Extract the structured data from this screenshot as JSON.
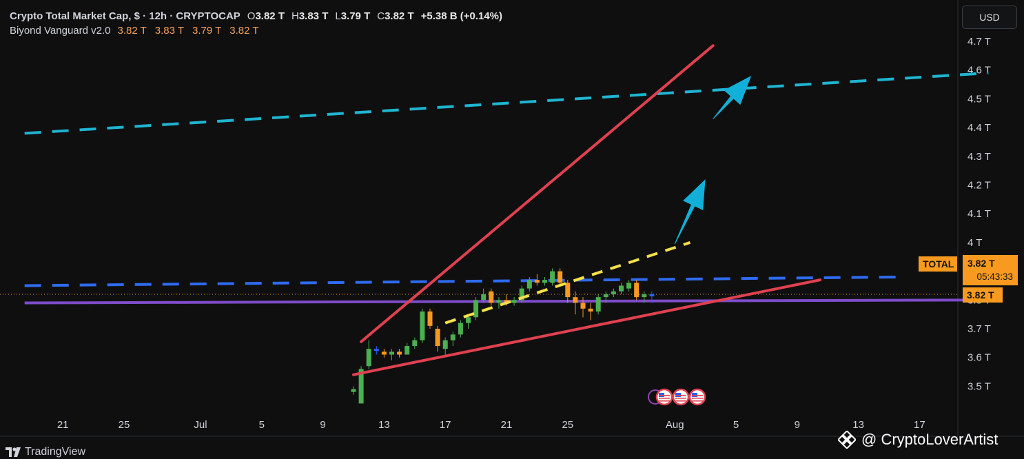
{
  "legend": {
    "symbol": "Crypto Total Market Cap, $ · 12h · CRYPTOCAP",
    "open_label": "O",
    "open": "3.82 T",
    "high_label": "H",
    "high": "3.83 T",
    "low_label": "L",
    "low": "3.79 T",
    "close_label": "C",
    "close": "3.82 T",
    "change": "+5.38 B (+0.14%)",
    "indicator_name": "Biyond Vanguard v2.0",
    "indicator_values": [
      "3.82 T",
      "3.83 T",
      "3.79 T",
      "3.82 T"
    ]
  },
  "currency_button": "USD",
  "price_tags": {
    "series_label": "TOTAL",
    "last_price": "3.82 T",
    "countdown": "05:43:33",
    "indicator_price": "3.82 T"
  },
  "branding": {
    "platform": "TradingView",
    "watermark": "@ CryptoLoverArtist"
  },
  "colors": {
    "background": "#0f0f10",
    "up_candle": "#4caf50",
    "down_candle": "#f79a1f",
    "doji_candle": "#2962ff",
    "wedge": "#e0414f",
    "cyan_level": "#1fb5d1",
    "blue_level": "#2f6bf0",
    "purple_level": "#7e4cc9",
    "yellow_trend": "#f5e04a",
    "arrow": "#12b0d8"
  },
  "chart_data": {
    "type": "candlestick",
    "title": "Crypto Total Market Cap, $ · 12h · CRYPTOCAP",
    "y_unit": "T",
    "ylim": [
      3.45,
      4.72
    ],
    "y_ticks": [
      {
        "v": 4.7,
        "l": "4.7 T"
      },
      {
        "v": 4.6,
        "l": "4.6 T"
      },
      {
        "v": 4.5,
        "l": "4.5 T"
      },
      {
        "v": 4.4,
        "l": "4.4 T"
      },
      {
        "v": 4.3,
        "l": "4.3 T"
      },
      {
        "v": 4.2,
        "l": "4.2 T"
      },
      {
        "v": 4.1,
        "l": "4.1 T"
      },
      {
        "v": 4.0,
        "l": "4 T"
      },
      {
        "v": 3.8,
        "l": "3.8 T"
      },
      {
        "v": 3.7,
        "l": "3.7 T"
      },
      {
        "v": 3.6,
        "l": "3.6 T"
      },
      {
        "v": 3.5,
        "l": "3.5 T"
      }
    ],
    "x_ticks": [
      {
        "day": -9,
        "l": "21"
      },
      {
        "day": -5,
        "l": "25"
      },
      {
        "day": 0,
        "l": "Jul"
      },
      {
        "day": 4,
        "l": "5"
      },
      {
        "day": 8,
        "l": "9"
      },
      {
        "day": 12,
        "l": "13"
      },
      {
        "day": 16,
        "l": "17"
      },
      {
        "day": 20,
        "l": "21"
      },
      {
        "day": 24,
        "l": "25"
      },
      {
        "day": 31,
        "l": "Aug"
      },
      {
        "day": 35,
        "l": "5"
      },
      {
        "day": 39,
        "l": "9"
      },
      {
        "day": 43,
        "l": "13"
      },
      {
        "day": 47,
        "l": "17"
      }
    ],
    "candles": [
      {
        "d": "Jul 10 00:00",
        "o": 3.48,
        "h": 3.5,
        "l": 3.47,
        "c": 3.49
      },
      {
        "d": "Jul 10 12:00",
        "o": 3.44,
        "h": 3.57,
        "l": 3.44,
        "c": 3.56
      },
      {
        "d": "Jul 11 00:00",
        "o": 3.57,
        "h": 3.66,
        "l": 3.56,
        "c": 3.63
      },
      {
        "d": "Jul 11 12:00",
        "o": 3.63,
        "h": 3.64,
        "l": 3.61,
        "c": 3.63
      },
      {
        "d": "Jul 12 00:00",
        "o": 3.62,
        "h": 3.63,
        "l": 3.6,
        "c": 3.61
      },
      {
        "d": "Jul 12 12:00",
        "o": 3.61,
        "h": 3.63,
        "l": 3.59,
        "c": 3.62
      },
      {
        "d": "Jul 13 00:00",
        "o": 3.62,
        "h": 3.63,
        "l": 3.6,
        "c": 3.61
      },
      {
        "d": "Jul 13 12:00",
        "o": 3.61,
        "h": 3.65,
        "l": 3.61,
        "c": 3.64
      },
      {
        "d": "Jul 14 00:00",
        "o": 3.64,
        "h": 3.67,
        "l": 3.63,
        "c": 3.66
      },
      {
        "d": "Jul 14 12:00",
        "o": 3.66,
        "h": 3.77,
        "l": 3.65,
        "c": 3.76
      },
      {
        "d": "Jul 15 00:00",
        "o": 3.76,
        "h": 3.77,
        "l": 3.7,
        "c": 3.71
      },
      {
        "d": "Jul 15 12:00",
        "o": 3.7,
        "h": 3.71,
        "l": 3.62,
        "c": 3.64
      },
      {
        "d": "Jul 16 00:00",
        "o": 3.63,
        "h": 3.67,
        "l": 3.61,
        "c": 3.66
      },
      {
        "d": "Jul 16 12:00",
        "o": 3.66,
        "h": 3.69,
        "l": 3.64,
        "c": 3.68
      },
      {
        "d": "Jul 17 00:00",
        "o": 3.68,
        "h": 3.73,
        "l": 3.67,
        "c": 3.72
      },
      {
        "d": "Jul 17 12:00",
        "o": 3.72,
        "h": 3.75,
        "l": 3.7,
        "c": 3.74
      },
      {
        "d": "Jul 18 00:00",
        "o": 3.74,
        "h": 3.81,
        "l": 3.73,
        "c": 3.8
      },
      {
        "d": "Jul 18 12:00",
        "o": 3.8,
        "h": 3.84,
        "l": 3.79,
        "c": 3.82
      },
      {
        "d": "Jul 19 00:00",
        "o": 3.83,
        "h": 3.84,
        "l": 3.78,
        "c": 3.79
      },
      {
        "d": "Jul 19 12:00",
        "o": 3.79,
        "h": 3.81,
        "l": 3.77,
        "c": 3.8
      },
      {
        "d": "Jul 20 00:00",
        "o": 3.8,
        "h": 3.82,
        "l": 3.78,
        "c": 3.79
      },
      {
        "d": "Jul 20 12:00",
        "o": 3.79,
        "h": 3.81,
        "l": 3.78,
        "c": 3.8
      },
      {
        "d": "Jul 21 00:00",
        "o": 3.8,
        "h": 3.85,
        "l": 3.79,
        "c": 3.84
      },
      {
        "d": "Jul 21 12:00",
        "o": 3.84,
        "h": 3.88,
        "l": 3.83,
        "c": 3.87
      },
      {
        "d": "Jul 22 00:00",
        "o": 3.87,
        "h": 3.89,
        "l": 3.85,
        "c": 3.86
      },
      {
        "d": "Jul 22 12:00",
        "o": 3.86,
        "h": 3.88,
        "l": 3.85,
        "c": 3.87
      },
      {
        "d": "Jul 23 00:00",
        "o": 3.86,
        "h": 3.91,
        "l": 3.85,
        "c": 3.9
      },
      {
        "d": "Jul 23 12:00",
        "o": 3.9,
        "h": 3.91,
        "l": 3.85,
        "c": 3.86
      },
      {
        "d": "Jul 24 00:00",
        "o": 3.86,
        "h": 3.87,
        "l": 3.79,
        "c": 3.81
      },
      {
        "d": "Jul 24 12:00",
        "o": 3.81,
        "h": 3.83,
        "l": 3.75,
        "c": 3.79
      },
      {
        "d": "Jul 25 00:00",
        "o": 3.79,
        "h": 3.81,
        "l": 3.74,
        "c": 3.77
      },
      {
        "d": "Jul 25 12:00",
        "o": 3.77,
        "h": 3.79,
        "l": 3.73,
        "c": 3.76
      },
      {
        "d": "Jul 26 00:00",
        "o": 3.76,
        "h": 3.82,
        "l": 3.75,
        "c": 3.81
      },
      {
        "d": "Jul 26 12:00",
        "o": 3.81,
        "h": 3.83,
        "l": 3.79,
        "c": 3.82
      },
      {
        "d": "Jul 27 00:00",
        "o": 3.82,
        "h": 3.84,
        "l": 3.81,
        "c": 3.83
      },
      {
        "d": "Jul 27 12:00",
        "o": 3.83,
        "h": 3.86,
        "l": 3.82,
        "c": 3.85
      },
      {
        "d": "Jul 28 00:00",
        "o": 3.84,
        "h": 3.87,
        "l": 3.83,
        "c": 3.86
      },
      {
        "d": "Jul 28 12:00",
        "o": 3.86,
        "h": 3.87,
        "l": 3.8,
        "c": 3.81
      },
      {
        "d": "Jul 29 00:00",
        "o": 3.81,
        "h": 3.83,
        "l": 3.79,
        "c": 3.82
      },
      {
        "d": "Jul 29 12:00",
        "o": 3.82,
        "h": 3.83,
        "l": 3.79,
        "c": 3.82
      }
    ],
    "levels": [
      {
        "name": "cyan-level",
        "from": {
          "day": -11.5,
          "v": 4.38
        },
        "to": {
          "day": 51.5,
          "v": 4.59
        },
        "style": "dashed"
      },
      {
        "name": "blue-level",
        "from": {
          "day": -11.5,
          "v": 3.85
        },
        "to": {
          "day": 45.5,
          "v": 3.88
        },
        "style": "dashed"
      },
      {
        "name": "purple-level",
        "from": {
          "day": -11.5,
          "v": 3.79
        },
        "to": {
          "day": 51,
          "v": 3.8
        },
        "style": "solid"
      }
    ],
    "wedge": [
      {
        "name": "wedge-upper-line",
        "from": {
          "day": 10.5,
          "v": 3.655
        },
        "to": {
          "day": 33.5,
          "v": 4.685
        }
      },
      {
        "name": "wedge-lower-line",
        "from": {
          "day": 10,
          "v": 3.54
        },
        "to": {
          "day": 40.5,
          "v": 3.87
        }
      }
    ],
    "yellow_trend": {
      "from": {
        "day": 16,
        "v": 3.72
      },
      "to": {
        "day": 32,
        "v": 4.0
      }
    },
    "arrows": [
      {
        "name": "arrow-short",
        "from": {
          "day": 31,
          "v": 3.995
        },
        "to": {
          "day": 33,
          "v": 4.22
        }
      },
      {
        "name": "arrow-long",
        "from": {
          "day": 33.5,
          "v": 4.43
        },
        "to": {
          "day": 36,
          "v": 4.58
        }
      }
    ],
    "events_day": 30,
    "current_price": 3.82
  }
}
